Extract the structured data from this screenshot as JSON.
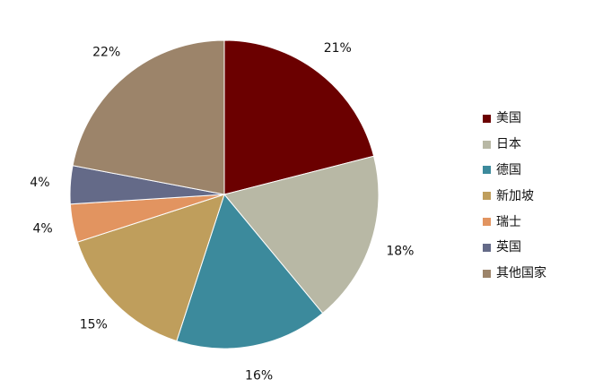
{
  "chart_data": {
    "type": "pie",
    "title": "",
    "categories": [
      "美国",
      "日本",
      "德国",
      "新加坡",
      "瑞士",
      "英国",
      "其他国家"
    ],
    "values": [
      21,
      18,
      16,
      15,
      4,
      4,
      22
    ],
    "labels": [
      "21%",
      "18%",
      "16%",
      "15%",
      "4%",
      "4%",
      "22%"
    ],
    "colors": [
      "#6B0000",
      "#B8B8A5",
      "#3C8A9C",
      "#BF9E5C",
      "#E29460",
      "#646A88",
      "#9C846A"
    ],
    "start_angle_deg": 0,
    "direction": "clockwise",
    "legend_position": "right"
  }
}
